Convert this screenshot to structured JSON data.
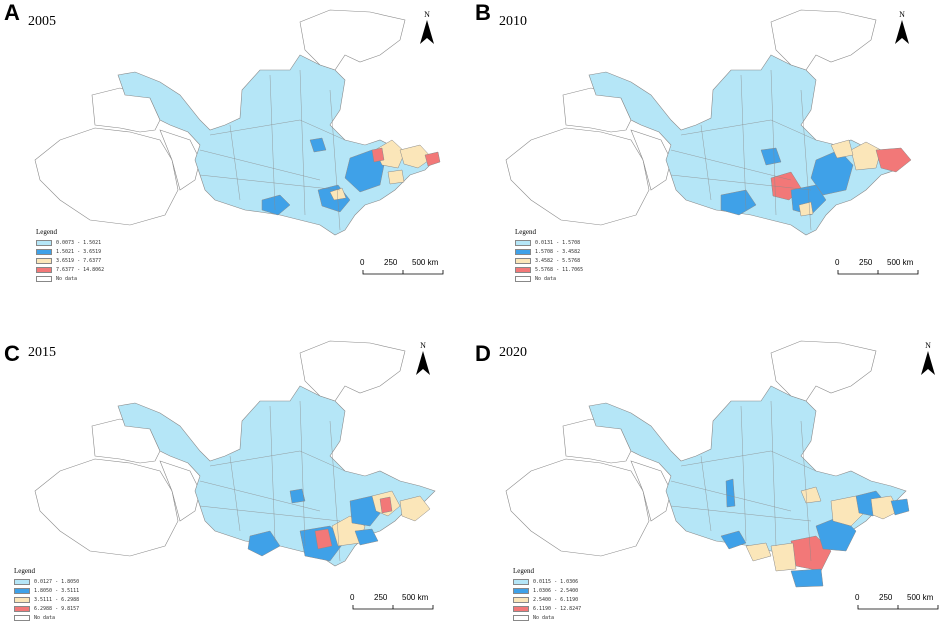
{
  "panels": [
    {
      "label": "A",
      "year": "2005",
      "legend": {
        "title": "Legend",
        "classes": [
          {
            "range": "0.0073 - 1.5021",
            "color": "#b5e6f7"
          },
          {
            "range": "1.5021 - 3.6519",
            "color": "#3fa1e8"
          },
          {
            "range": "3.6519 - 7.6377",
            "color": "#fbe6b9"
          },
          {
            "range": "7.6377 - 14.8062",
            "color": "#f27878"
          },
          {
            "range": "No data",
            "color": "#ffffff"
          }
        ]
      },
      "north": "N",
      "scale": {
        "ticks": [
          "0",
          "250",
          "500 km"
        ]
      }
    },
    {
      "label": "B",
      "year": "2010",
      "legend": {
        "title": "Legend",
        "classes": [
          {
            "range": "0.0131 - 1.5708",
            "color": "#b5e6f7"
          },
          {
            "range": "1.5708 - 3.4582",
            "color": "#3fa1e8"
          },
          {
            "range": "3.4582 - 5.5768",
            "color": "#fbe6b9"
          },
          {
            "range": "5.5768 - 11.7065",
            "color": "#f27878"
          },
          {
            "range": "No data",
            "color": "#ffffff"
          }
        ]
      },
      "north": "N",
      "scale": {
        "ticks": [
          "0",
          "250",
          "500 km"
        ]
      }
    },
    {
      "label": "C",
      "year": "2015",
      "legend": {
        "title": "Legend",
        "classes": [
          {
            "range": "0.0127 - 1.8050",
            "color": "#b5e6f7"
          },
          {
            "range": "1.8050 - 3.5111",
            "color": "#3fa1e8"
          },
          {
            "range": "3.5111 - 6.2988",
            "color": "#fbe6b9"
          },
          {
            "range": "6.2988 - 9.8157",
            "color": "#f27878"
          },
          {
            "range": "No data",
            "color": "#ffffff"
          }
        ]
      },
      "north": "N",
      "scale": {
        "ticks": [
          "0",
          "250",
          "500 km"
        ]
      }
    },
    {
      "label": "D",
      "year": "2020",
      "legend": {
        "title": "Legend",
        "classes": [
          {
            "range": "0.0115 - 1.0306",
            "color": "#b5e6f7"
          },
          {
            "range": "1.0306 - 2.5400",
            "color": "#3fa1e8"
          },
          {
            "range": "2.5400 - 6.1190",
            "color": "#fbe6b9"
          },
          {
            "range": "6.1190 - 12.8247",
            "color": "#f27878"
          },
          {
            "range": "No data",
            "color": "#ffffff"
          }
        ]
      },
      "north": "N",
      "scale": {
        "ticks": [
          "0",
          "250",
          "500 km"
        ]
      }
    }
  ],
  "colors": {
    "light_blue": "#b5e6f7",
    "mid_blue": "#3fa1e8",
    "beige": "#fbe6b9",
    "red": "#f27878",
    "no_data": "#ffffff",
    "border": "#8a8a8a"
  }
}
